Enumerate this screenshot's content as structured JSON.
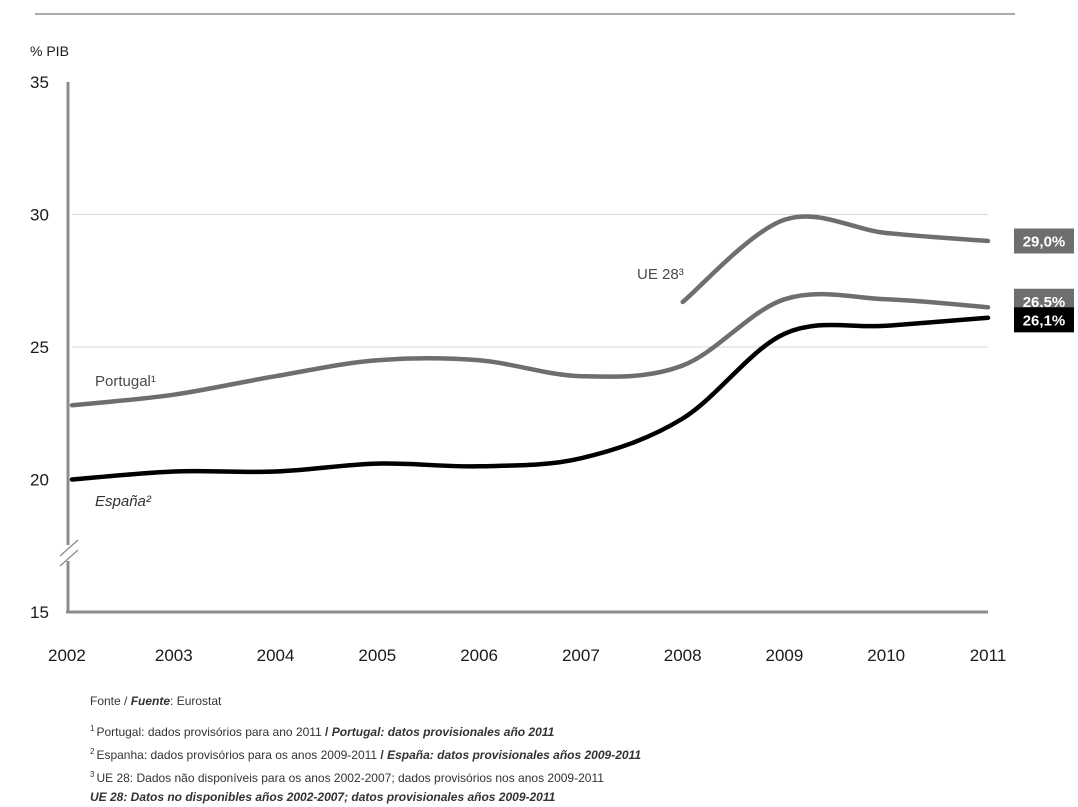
{
  "chart_data": {
    "type": "line",
    "ylabel": "% PIB",
    "x": [
      2002,
      2003,
      2004,
      2005,
      2006,
      2007,
      2008,
      2009,
      2010,
      2011
    ],
    "xtick_labels": [
      "2002",
      "2003",
      "2004",
      "2005",
      "2006",
      "2007",
      "2008",
      "2009",
      "2010",
      "2011"
    ],
    "ylim": [
      15,
      35
    ],
    "yticks": [
      15,
      20,
      25,
      30,
      35
    ],
    "ytick_labels": [
      "15",
      "20",
      "25",
      "30",
      "35"
    ],
    "y_axis_break": true,
    "gridlines": [
      25,
      30
    ],
    "series": [
      {
        "name": "Portugal",
        "label": "Portugal¹",
        "color": "#6e6e6e",
        "x": [
          2002,
          2003,
          2004,
          2005,
          2006,
          2007,
          2008,
          2009,
          2010,
          2011
        ],
        "values": [
          22.8,
          23.2,
          23.9,
          24.5,
          24.5,
          23.9,
          24.3,
          26.8,
          26.8,
          26.5
        ],
        "end_label": "26,5%",
        "badge_color": "#6e6e6e"
      },
      {
        "name": "España",
        "label": "España²",
        "color": "#000000",
        "x": [
          2002,
          2003,
          2004,
          2005,
          2006,
          2007,
          2008,
          2009,
          2010,
          2011
        ],
        "values": [
          20.0,
          20.3,
          20.3,
          20.6,
          20.5,
          20.8,
          22.3,
          25.5,
          25.8,
          26.1
        ],
        "end_label": "26,1%",
        "badge_color": "#000000"
      },
      {
        "name": "UE 28",
        "label": "UE 28³",
        "color": "#6e6e6e",
        "x": [
          2008,
          2009,
          2010,
          2011
        ],
        "values": [
          26.7,
          29.8,
          29.3,
          29.0
        ],
        "end_label": "29,0%",
        "badge_color": "#6e6e6e"
      }
    ],
    "source": {
      "prefix": "Fonte / ",
      "fuente": "Fuente",
      "name": ": Eurostat"
    },
    "footnotes": [
      {
        "num": "1",
        "pt": "Portugal: dados provisórios para ano 2011",
        "sep": " / ",
        "es": "Portugal: datos provisionales año 2011"
      },
      {
        "num": "2",
        "pt": "Espanha: dados provisórios para os anos 2009-2011",
        "sep": " / ",
        "es": "España: datos provisionales años 2009-2011"
      },
      {
        "num": "3",
        "pt": "UE 28: Dados não disponíveis para os anos 2002-2007; dados provisórios nos anos 2009-2011",
        "sep": "",
        "es": ""
      },
      {
        "num": "",
        "pt": "",
        "sep": "",
        "es": "UE 28: Datos no disponibles años 2002-2007; datos provisionales años 2009-2011"
      }
    ]
  }
}
